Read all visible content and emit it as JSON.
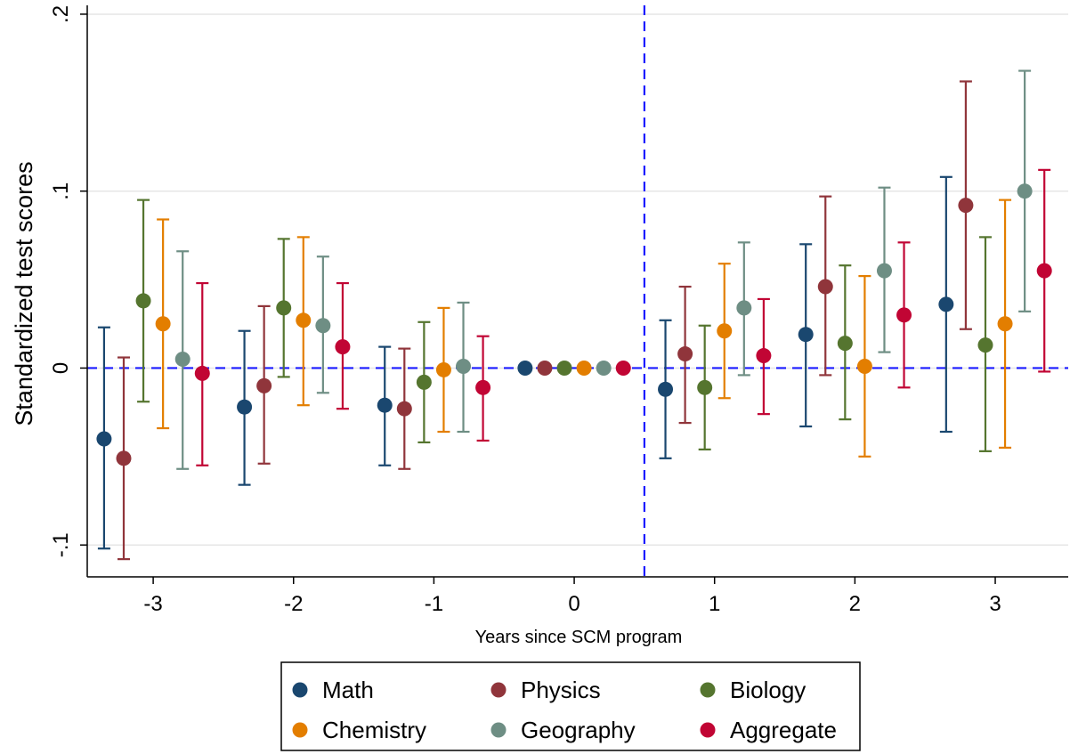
{
  "chart_data": {
    "type": "scatter",
    "subtype": "coefficient plot with 95% confidence intervals",
    "xlabel": "Years since SCM program",
    "ylabel": "Standardized test scores",
    "x_ticks": [
      "-3",
      "-2",
      "-1",
      "0",
      "1",
      "2",
      "3"
    ],
    "y_ticks": [
      "-.1",
      "0",
      ".1",
      ".2"
    ],
    "ylim": [
      -0.118,
      0.205
    ],
    "xlim": [
      -3.47,
      3.52
    ],
    "grid": "horizontal",
    "reference_lines": [
      {
        "axis": "y",
        "value": 0,
        "style": "dashed",
        "color": "#1a1aff"
      },
      {
        "axis": "x",
        "value": 0.5,
        "style": "dashed",
        "color": "#1a1aff"
      }
    ],
    "legend_position": "bottom",
    "series": [
      {
        "name": "Math",
        "color": "#1a476f",
        "points": [
          {
            "x": -3,
            "y": -0.04,
            "lo": -0.102,
            "hi": 0.023
          },
          {
            "x": -2,
            "y": -0.022,
            "lo": -0.066,
            "hi": 0.021
          },
          {
            "x": -1,
            "y": -0.021,
            "lo": -0.055,
            "hi": 0.012
          },
          {
            "x": 0,
            "y": 0.0,
            "lo": null,
            "hi": null
          },
          {
            "x": 1,
            "y": -0.012,
            "lo": -0.051,
            "hi": 0.027
          },
          {
            "x": 2,
            "y": 0.019,
            "lo": -0.033,
            "hi": 0.07
          },
          {
            "x": 3,
            "y": 0.036,
            "lo": -0.036,
            "hi": 0.108
          }
        ]
      },
      {
        "name": "Physics",
        "color": "#90353b",
        "points": [
          {
            "x": -3,
            "y": -0.051,
            "lo": -0.108,
            "hi": 0.006
          },
          {
            "x": -2,
            "y": -0.01,
            "lo": -0.054,
            "hi": 0.035
          },
          {
            "x": -1,
            "y": -0.023,
            "lo": -0.057,
            "hi": 0.011
          },
          {
            "x": 0,
            "y": 0.0,
            "lo": null,
            "hi": null
          },
          {
            "x": 1,
            "y": 0.008,
            "lo": -0.031,
            "hi": 0.046
          },
          {
            "x": 2,
            "y": 0.046,
            "lo": -0.004,
            "hi": 0.097
          },
          {
            "x": 3,
            "y": 0.092,
            "lo": 0.022,
            "hi": 0.162
          }
        ]
      },
      {
        "name": "Biology",
        "color": "#55752f",
        "points": [
          {
            "x": -3,
            "y": 0.038,
            "lo": -0.019,
            "hi": 0.095
          },
          {
            "x": -2,
            "y": 0.034,
            "lo": -0.005,
            "hi": 0.073
          },
          {
            "x": -1,
            "y": -0.008,
            "lo": -0.042,
            "hi": 0.026
          },
          {
            "x": 0,
            "y": 0.0,
            "lo": null,
            "hi": null
          },
          {
            "x": 1,
            "y": -0.011,
            "lo": -0.046,
            "hi": 0.024
          },
          {
            "x": 2,
            "y": 0.014,
            "lo": -0.029,
            "hi": 0.058
          },
          {
            "x": 3,
            "y": 0.013,
            "lo": -0.047,
            "hi": 0.074
          }
        ]
      },
      {
        "name": "Chemistry",
        "color": "#e37e00",
        "points": [
          {
            "x": -3,
            "y": 0.025,
            "lo": -0.034,
            "hi": 0.084
          },
          {
            "x": -2,
            "y": 0.027,
            "lo": -0.021,
            "hi": 0.074
          },
          {
            "x": -1,
            "y": -0.001,
            "lo": -0.036,
            "hi": 0.034
          },
          {
            "x": 0,
            "y": 0.0,
            "lo": null,
            "hi": null
          },
          {
            "x": 1,
            "y": 0.021,
            "lo": -0.017,
            "hi": 0.059
          },
          {
            "x": 2,
            "y": 0.001,
            "lo": -0.05,
            "hi": 0.052
          },
          {
            "x": 3,
            "y": 0.025,
            "lo": -0.045,
            "hi": 0.095
          }
        ]
      },
      {
        "name": "Geography",
        "color": "#6e8e84",
        "points": [
          {
            "x": -3,
            "y": 0.005,
            "lo": -0.057,
            "hi": 0.066
          },
          {
            "x": -2,
            "y": 0.024,
            "lo": -0.014,
            "hi": 0.063
          },
          {
            "x": -1,
            "y": 0.001,
            "lo": -0.036,
            "hi": 0.037
          },
          {
            "x": 0,
            "y": 0.0,
            "lo": null,
            "hi": null
          },
          {
            "x": 1,
            "y": 0.034,
            "lo": -0.004,
            "hi": 0.071
          },
          {
            "x": 2,
            "y": 0.055,
            "lo": 0.009,
            "hi": 0.102
          },
          {
            "x": 3,
            "y": 0.1,
            "lo": 0.032,
            "hi": 0.168
          }
        ]
      },
      {
        "name": "Aggregate",
        "color": "#c10534",
        "points": [
          {
            "x": -3,
            "y": -0.003,
            "lo": -0.055,
            "hi": 0.048
          },
          {
            "x": -2,
            "y": 0.012,
            "lo": -0.023,
            "hi": 0.048
          },
          {
            "x": -1,
            "y": -0.011,
            "lo": -0.041,
            "hi": 0.018
          },
          {
            "x": 0,
            "y": 0.0,
            "lo": null,
            "hi": null
          },
          {
            "x": 1,
            "y": 0.007,
            "lo": -0.026,
            "hi": 0.039
          },
          {
            "x": 2,
            "y": 0.03,
            "lo": -0.011,
            "hi": 0.071
          },
          {
            "x": 3,
            "y": 0.055,
            "lo": -0.002,
            "hi": 0.112
          }
        ]
      }
    ]
  },
  "colors": {
    "reference_line": "#1a1aff",
    "grid": "#e6e6e6",
    "axis": "#000000"
  }
}
